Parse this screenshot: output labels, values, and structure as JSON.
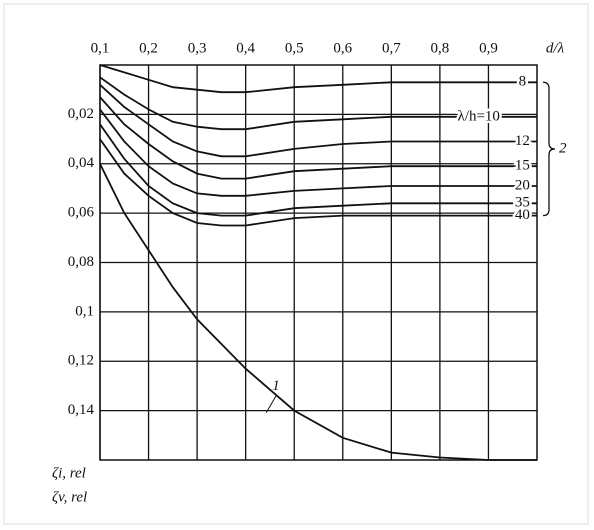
{
  "chart_data": {
    "type": "line",
    "xlabel": "d/λ",
    "ylabel": [
      "ζi, rel",
      "ζv, rel"
    ],
    "bracket_label": "2",
    "x": [
      0.1,
      0.15,
      0.2,
      0.25,
      0.3,
      0.35,
      0.4,
      0.5,
      0.6,
      0.7,
      0.8,
      0.9,
      1.0
    ],
    "xlim": [
      0.1,
      1.0
    ],
    "xticks": [
      {
        "value": 0.1,
        "label": "0,1"
      },
      {
        "value": 0.2,
        "label": "0,2"
      },
      {
        "value": 0.3,
        "label": "0,3"
      },
      {
        "value": 0.4,
        "label": "0,4"
      },
      {
        "value": 0.5,
        "label": "0,5"
      },
      {
        "value": 0.6,
        "label": "0,6"
      },
      {
        "value": 0.7,
        "label": "0,7"
      },
      {
        "value": 0.8,
        "label": "0,8"
      },
      {
        "value": 0.9,
        "label": "0,9"
      }
    ],
    "ylim": [
      0,
      0.16
    ],
    "yticks": [
      {
        "value": 0.02,
        "label": "0,02"
      },
      {
        "value": 0.04,
        "label": "0,04"
      },
      {
        "value": 0.06,
        "label": "0,06"
      },
      {
        "value": 0.08,
        "label": "0,08"
      },
      {
        "value": 0.1,
        "label": "0,1"
      },
      {
        "value": 0.12,
        "label": "0,12"
      },
      {
        "value": 0.14,
        "label": "0,14"
      }
    ],
    "y_inverted": true,
    "grid": true,
    "series": [
      {
        "name": "1",
        "group": "1",
        "color": "#111111",
        "values": [
          0.04,
          0.06,
          0.075,
          0.09,
          0.103,
          0.113,
          0.123,
          0.14,
          0.151,
          0.157,
          0.159,
          0.16,
          0.16
        ]
      },
      {
        "name": "8",
        "group": "2",
        "color": "#111111",
        "values": [
          0,
          0.003,
          0.006,
          0.009,
          0.01,
          0.011,
          0.011,
          0.009,
          0.008,
          0.007,
          0.007,
          0.007,
          0.007
        ]
      },
      {
        "name": "λ/h=10",
        "group": "2",
        "color": "#111111",
        "values": [
          0.005,
          0.012,
          0.018,
          0.023,
          0.025,
          0.026,
          0.026,
          0.023,
          0.022,
          0.021,
          0.021,
          0.021,
          0.021
        ]
      },
      {
        "name": "12",
        "group": "2",
        "color": "#111111",
        "values": [
          0.008,
          0.017,
          0.024,
          0.031,
          0.035,
          0.037,
          0.037,
          0.034,
          0.032,
          0.031,
          0.031,
          0.031,
          0.031
        ]
      },
      {
        "name": "15",
        "group": "2",
        "color": "#111111",
        "values": [
          0.013,
          0.024,
          0.032,
          0.039,
          0.044,
          0.046,
          0.046,
          0.043,
          0.042,
          0.041,
          0.041,
          0.041,
          0.041
        ]
      },
      {
        "name": "20",
        "group": "2",
        "color": "#111111",
        "values": [
          0.018,
          0.031,
          0.041,
          0.048,
          0.052,
          0.053,
          0.053,
          0.051,
          0.05,
          0.049,
          0.049,
          0.049,
          0.049
        ]
      },
      {
        "name": "35",
        "group": "2",
        "color": "#111111",
        "values": [
          0.024,
          0.038,
          0.049,
          0.056,
          0.06,
          0.061,
          0.061,
          0.058,
          0.057,
          0.056,
          0.056,
          0.056,
          0.056
        ]
      },
      {
        "name": "40",
        "group": "2",
        "color": "#111111",
        "values": [
          0.03,
          0.044,
          0.053,
          0.06,
          0.064,
          0.065,
          0.065,
          0.062,
          0.061,
          0.061,
          0.061,
          0.061,
          0.061
        ]
      }
    ]
  }
}
